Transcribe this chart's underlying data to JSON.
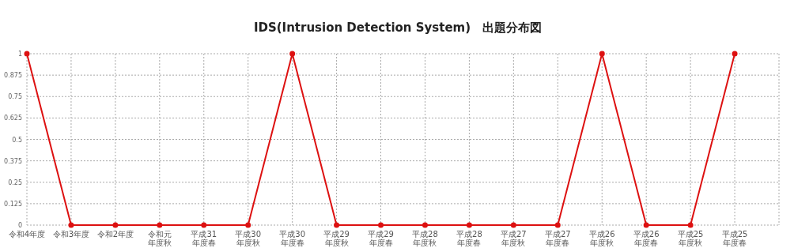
{
  "chart_data": {
    "type": "line",
    "title": "IDS(Intrusion Detection System)　出題分布図",
    "categories": [
      "令和4年度",
      "令和3年度",
      "令和2年度",
      "令和元年度秋",
      "平成31年度春",
      "平成30年度秋",
      "平成30年度春",
      "平成29年度秋",
      "平成29年度春",
      "平成28年度秋",
      "平成28年度春",
      "平成27年度秋",
      "平成27年度春",
      "平成26年度秋",
      "平成26年度春",
      "平成25年度秋",
      "平成25年度春"
    ],
    "series": [
      {
        "color": "#dd1111",
        "values": [
          1,
          0,
          0,
          0,
          0,
          0,
          1,
          0,
          0,
          0,
          0,
          0,
          0,
          1,
          0,
          0,
          1
        ]
      }
    ],
    "ylim": [
      0,
      1
    ],
    "yticks": [
      0,
      0.125,
      0.25,
      0.375,
      0.5,
      0.625,
      0.75,
      0.875,
      1
    ],
    "grid": true,
    "marker": "circle",
    "line_style": "solid"
  }
}
